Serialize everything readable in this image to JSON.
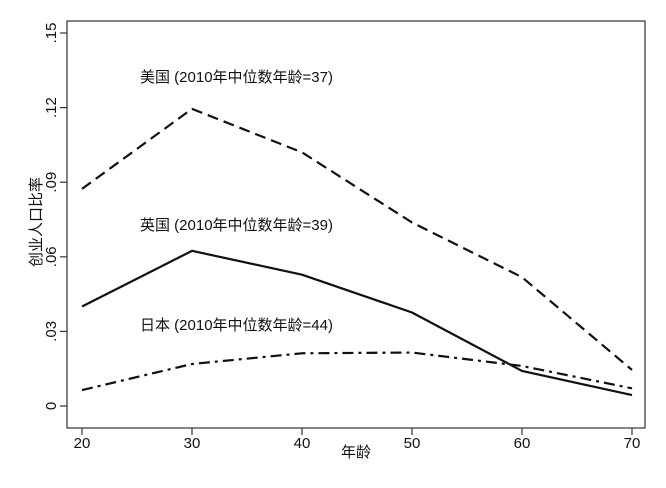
{
  "chart_data": {
    "type": "line",
    "title": "",
    "xlabel": "年龄",
    "ylabel": "创业人口比率",
    "x": [
      20,
      30,
      40,
      50,
      60,
      70
    ],
    "xlim": [
      20,
      70
    ],
    "ylim": [
      0,
      0.15
    ],
    "xticks": [
      "20",
      "30",
      "40",
      "50",
      "60",
      "70"
    ],
    "yticks": [
      "0",
      ".03",
      ".06",
      ".09",
      ".12",
      ".15"
    ],
    "grid": false,
    "series": [
      {
        "name": "美国 (2010年中位数年龄=37)",
        "style": "dashed",
        "color": "#111111",
        "values": [
          0.0873,
          0.1195,
          0.102,
          0.0738,
          0.0518,
          0.0145
        ]
      },
      {
        "name": "英国 (2010年中位数年龄=39)",
        "style": "solid",
        "color": "#111111",
        "values": [
          0.04,
          0.0624,
          0.0528,
          0.0376,
          0.0141,
          0.0044
        ]
      },
      {
        "name": "日本 (2010年中位数年龄=44)",
        "style": "dash-dot",
        "color": "#111111",
        "values": [
          0.0064,
          0.0169,
          0.0212,
          0.0215,
          0.0161,
          0.0071
        ]
      }
    ]
  }
}
